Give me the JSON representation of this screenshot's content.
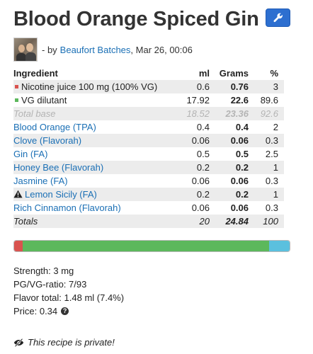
{
  "title": "Blood Orange Spiced Gin",
  "author": {
    "prefix": "- by",
    "name": "Beaufort Batches",
    "date": ", Mar 26, 00:06"
  },
  "table": {
    "headers": [
      "Ingredient",
      "ml",
      "Grams",
      "%"
    ],
    "base_rows": [
      {
        "name": "Nicotine juice 100 mg (100% VG)",
        "ml": "0.6",
        "grams": "0.76",
        "pct": "3",
        "marker_color": "#d9534f"
      },
      {
        "name": "VG dilutant",
        "ml": "17.92",
        "grams": "22.6",
        "pct": "89.6",
        "marker_color": "#5cb85c"
      }
    ],
    "total_base": {
      "name": "Total base",
      "ml": "18.52",
      "grams": "23.36",
      "pct": "92.6"
    },
    "flavors": [
      {
        "name": "Blood Orange (TPA)",
        "ml": "0.4",
        "grams": "0.4",
        "pct": "2"
      },
      {
        "name": "Clove (Flavorah)",
        "ml": "0.06",
        "grams": "0.06",
        "pct": "0.3"
      },
      {
        "name": "Gin (FA)",
        "ml": "0.5",
        "grams": "0.5",
        "pct": "2.5"
      },
      {
        "name": "Honey Bee (Flavorah)",
        "ml": "0.2",
        "grams": "0.2",
        "pct": "1"
      },
      {
        "name": "Jasmine (FA)",
        "ml": "0.06",
        "grams": "0.06",
        "pct": "0.3"
      },
      {
        "name": "Lemon Sicily (FA)",
        "ml": "0.2",
        "grams": "0.2",
        "pct": "1",
        "warning": true
      },
      {
        "name": "Rich Cinnamon (Flavorah)",
        "ml": "0.06",
        "grams": "0.06",
        "pct": "0.3"
      }
    ],
    "totals": {
      "name": "Totals",
      "ml": "20",
      "grams": "24.84",
      "pct": "100"
    }
  },
  "composition_bar": [
    {
      "name": "nicotine",
      "fraction": 0.03,
      "color": "#d9534f"
    },
    {
      "name": "vg",
      "fraction": 0.896,
      "color": "#5cb85c"
    },
    {
      "name": "flavor",
      "fraction": 0.074,
      "color": "#5bc0de"
    }
  ],
  "stats": {
    "strength": "Strength: 3 mg",
    "pgvg": "PG/VG-ratio: 7/93",
    "flavor_total": "Flavor total: 1.48 ml (7.4%)",
    "price": "Price: 0.34"
  },
  "private_note": "This recipe is private!",
  "icons": {
    "edit": "wrench-icon",
    "help": "question-circle-icon",
    "private": "eye-slash-icon",
    "warning": "warning-icon"
  },
  "colors": {
    "link": "#1a6fb5",
    "edit_button": "#2d6fd0"
  }
}
